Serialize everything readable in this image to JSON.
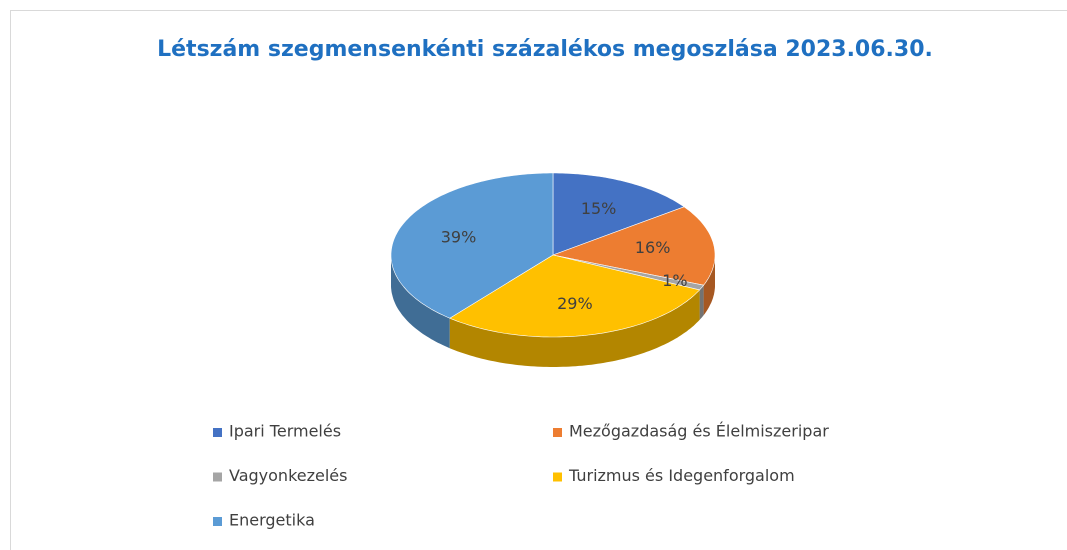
{
  "chart_data": {
    "type": "pie3d",
    "title": "Létszám szegmensenkénti százalékos megoszlása 2023.06.30.",
    "categories": [
      "Ipari Termelés",
      "Mezőgazdaság és Élelmiszeripar",
      "Vagyonkezelés",
      "Turizmus és Idegenforgalom",
      "Energetika"
    ],
    "values": [
      15,
      16,
      1,
      29,
      39
    ],
    "value_labels": [
      "15%",
      "16%",
      "1%",
      "29%",
      "39%"
    ],
    "colors": [
      "#4472c4",
      "#ed7d31",
      "#a5a5a5",
      "#ffc000",
      "#5b9bd5"
    ],
    "legend": "bottom"
  }
}
